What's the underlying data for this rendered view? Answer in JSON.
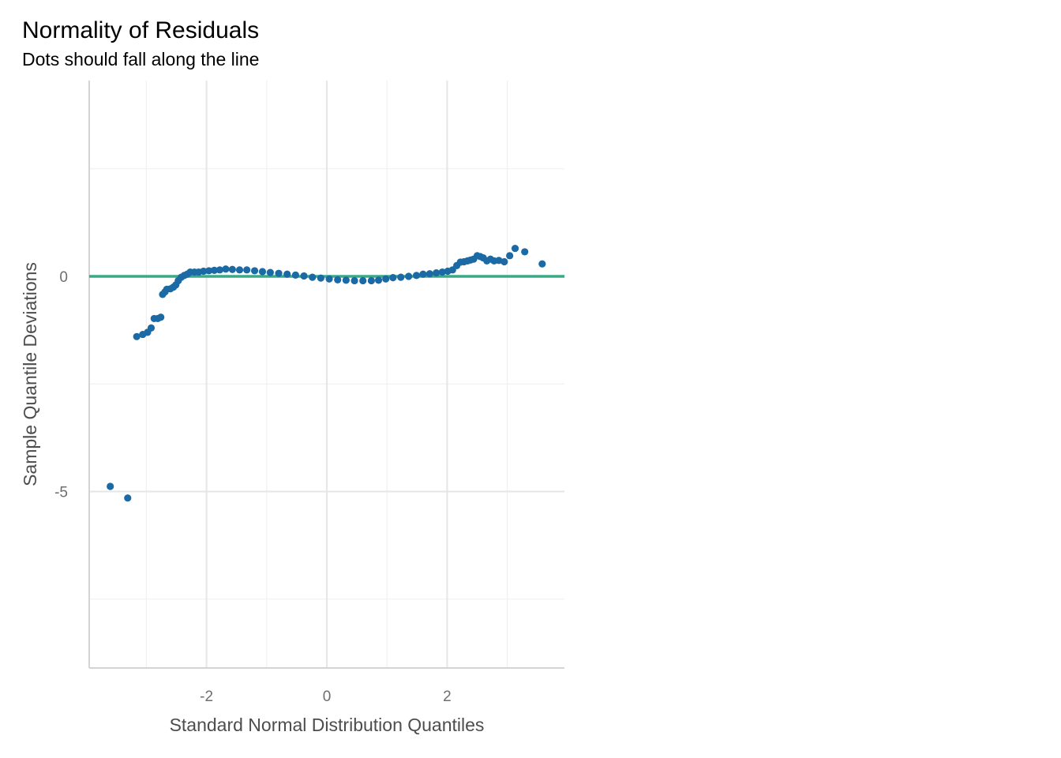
{
  "chart_data": {
    "type": "scatter",
    "title": "Normality of Residuals",
    "subtitle": "Dots should fall along the line",
    "xlabel": "Standard Normal Distribution Quantiles",
    "ylabel": "Sample Quantile Deviations",
    "xlim": [
      -3.95,
      3.95
    ],
    "ylim": [
      -9.1,
      4.55
    ],
    "x_ticks": [
      -2,
      0,
      2
    ],
    "x_tick_labels": [
      "-2",
      "0",
      "2"
    ],
    "y_ticks": [
      0,
      -5
    ],
    "y_tick_labels": [
      "0",
      "-5"
    ],
    "grid": true,
    "reference_line": {
      "y": 0,
      "color": "#3aaa85"
    },
    "point_color": "#1b6aa5",
    "points": [
      {
        "x": -3.6,
        "y": -4.88
      },
      {
        "x": -3.31,
        "y": -5.15
      },
      {
        "x": -3.16,
        "y": -1.4
      },
      {
        "x": -3.06,
        "y": -1.35
      },
      {
        "x": -2.98,
        "y": -1.3
      },
      {
        "x": -2.92,
        "y": -1.2
      },
      {
        "x": -2.87,
        "y": -0.98
      },
      {
        "x": -2.81,
        "y": -0.98
      },
      {
        "x": -2.76,
        "y": -0.95
      },
      {
        "x": -2.73,
        "y": -0.42
      },
      {
        "x": -2.69,
        "y": -0.36
      },
      {
        "x": -2.66,
        "y": -0.3
      },
      {
        "x": -2.6,
        "y": -0.29
      },
      {
        "x": -2.55,
        "y": -0.25
      },
      {
        "x": -2.51,
        "y": -0.2
      },
      {
        "x": -2.47,
        "y": -0.1
      },
      {
        "x": -2.42,
        "y": -0.02
      },
      {
        "x": -2.37,
        "y": 0.02
      },
      {
        "x": -2.32,
        "y": 0.05
      },
      {
        "x": -2.27,
        "y": 0.1
      },
      {
        "x": -2.2,
        "y": 0.1
      },
      {
        "x": -2.13,
        "y": 0.1
      },
      {
        "x": -2.05,
        "y": 0.12
      },
      {
        "x": -1.96,
        "y": 0.13
      },
      {
        "x": -1.87,
        "y": 0.14
      },
      {
        "x": -1.78,
        "y": 0.15
      },
      {
        "x": -1.68,
        "y": 0.17
      },
      {
        "x": -1.57,
        "y": 0.16
      },
      {
        "x": -1.45,
        "y": 0.15
      },
      {
        "x": -1.33,
        "y": 0.15
      },
      {
        "x": -1.2,
        "y": 0.13
      },
      {
        "x": -1.07,
        "y": 0.11
      },
      {
        "x": -0.94,
        "y": 0.09
      },
      {
        "x": -0.8,
        "y": 0.07
      },
      {
        "x": -0.66,
        "y": 0.05
      },
      {
        "x": -0.52,
        "y": 0.03
      },
      {
        "x": -0.38,
        "y": 0.01
      },
      {
        "x": -0.24,
        "y": -0.02
      },
      {
        "x": -0.1,
        "y": -0.04
      },
      {
        "x": 0.04,
        "y": -0.06
      },
      {
        "x": 0.18,
        "y": -0.08
      },
      {
        "x": 0.32,
        "y": -0.09
      },
      {
        "x": 0.46,
        "y": -0.1
      },
      {
        "x": 0.6,
        "y": -0.1
      },
      {
        "x": 0.74,
        "y": -0.1
      },
      {
        "x": 0.86,
        "y": -0.09
      },
      {
        "x": 0.98,
        "y": -0.06
      },
      {
        "x": 1.1,
        "y": -0.03
      },
      {
        "x": 1.23,
        "y": -0.02
      },
      {
        "x": 1.36,
        "y": 0.0
      },
      {
        "x": 1.49,
        "y": 0.02
      },
      {
        "x": 1.6,
        "y": 0.05
      },
      {
        "x": 1.71,
        "y": 0.06
      },
      {
        "x": 1.82,
        "y": 0.08
      },
      {
        "x": 1.92,
        "y": 0.1
      },
      {
        "x": 2.01,
        "y": 0.12
      },
      {
        "x": 2.09,
        "y": 0.15
      },
      {
        "x": 2.16,
        "y": 0.25
      },
      {
        "x": 2.22,
        "y": 0.33
      },
      {
        "x": 2.28,
        "y": 0.34
      },
      {
        "x": 2.34,
        "y": 0.36
      },
      {
        "x": 2.39,
        "y": 0.38
      },
      {
        "x": 2.44,
        "y": 0.4
      },
      {
        "x": 2.5,
        "y": 0.48
      },
      {
        "x": 2.55,
        "y": 0.46
      },
      {
        "x": 2.6,
        "y": 0.43
      },
      {
        "x": 2.66,
        "y": 0.36
      },
      {
        "x": 2.72,
        "y": 0.4
      },
      {
        "x": 2.78,
        "y": 0.36
      },
      {
        "x": 2.86,
        "y": 0.37
      },
      {
        "x": 2.95,
        "y": 0.34
      },
      {
        "x": 3.04,
        "y": 0.48
      },
      {
        "x": 3.13,
        "y": 0.65
      },
      {
        "x": 3.29,
        "y": 0.57
      },
      {
        "x": 3.58,
        "y": 0.29
      }
    ]
  }
}
